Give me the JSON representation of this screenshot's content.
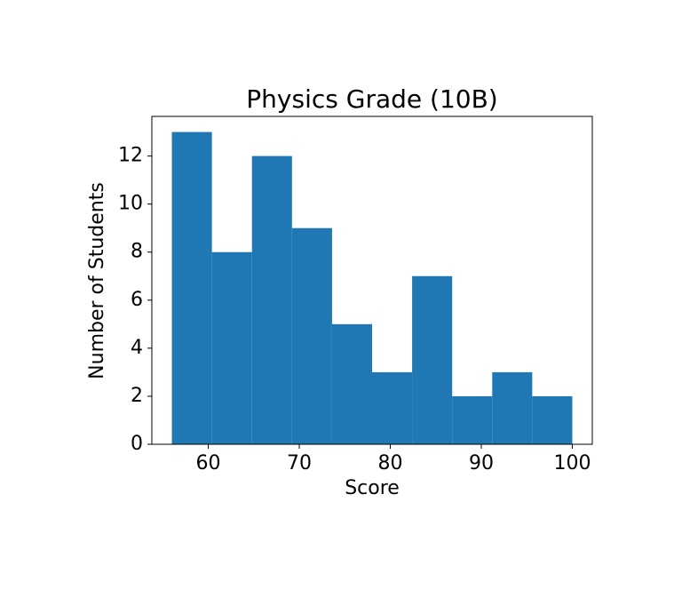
{
  "chart_data": {
    "type": "histogram",
    "title": "Physics Grade (10B)",
    "x_label": "Score",
    "y_label": "Number of Students",
    "bins": [
      56,
      60.4,
      64.8,
      69.2,
      73.6,
      78,
      82.4,
      86.8,
      91.2,
      95.6,
      100
    ],
    "values": [
      13,
      8,
      12,
      9,
      5,
      3,
      7,
      2,
      3,
      2
    ],
    "color": "#1f77b4",
    "xlim": [
      53.8,
      102.2
    ],
    "xticks": [
      60,
      70,
      80,
      90,
      100
    ],
    "ylim": [
      0,
      13.65
    ],
    "yticks": [
      0,
      2,
      4,
      6,
      8,
      10,
      12
    ],
    "grid": false
  }
}
